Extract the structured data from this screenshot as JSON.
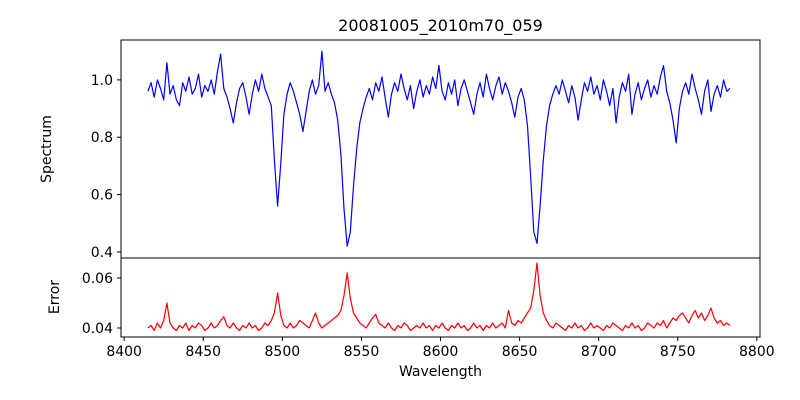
{
  "chart_data": {
    "type": "line",
    "title": "20081005_2010m70_059",
    "xlabel": "Wavelength",
    "grid": false,
    "legend": false,
    "xlim": [
      8398,
      8802
    ],
    "xticks": [
      8400,
      8450,
      8500,
      8550,
      8600,
      8650,
      8700,
      8750,
      8800
    ],
    "xtick_labels": [
      "8400",
      "8450",
      "8500",
      "8550",
      "8600",
      "8650",
      "8700",
      "8750",
      "8800"
    ],
    "absorption_features_x": [
      8498,
      8542,
      8662
    ],
    "panels": [
      {
        "ylabel": "Spectrum",
        "ylim": [
          0.379,
          1.139
        ],
        "yticks": [
          0.4,
          0.6,
          0.8,
          1.0
        ],
        "ytick_labels": [
          "0.4",
          "0.6",
          "0.8",
          "1.0"
        ],
        "series": {
          "name": "spectrum",
          "color": "#0000ff",
          "x_start": 8415,
          "x_step": 2,
          "y": [
            0.96,
            0.99,
            0.94,
            1.0,
            0.97,
            0.93,
            1.06,
            0.95,
            0.98,
            0.93,
            0.91,
            0.99,
            0.96,
            1.01,
            0.95,
            0.97,
            1.02,
            0.94,
            0.98,
            0.96,
            1.0,
            0.95,
            1.03,
            1.09,
            0.97,
            0.94,
            0.9,
            0.85,
            0.92,
            0.97,
            0.99,
            0.94,
            0.88,
            0.95,
            1.0,
            0.96,
            1.02,
            0.97,
            0.94,
            0.91,
            0.72,
            0.56,
            0.71,
            0.88,
            0.95,
            0.99,
            0.96,
            0.92,
            0.88,
            0.82,
            0.89,
            0.96,
            1.0,
            0.95,
            0.98,
            1.1,
            0.96,
            0.99,
            0.95,
            0.92,
            0.86,
            0.74,
            0.55,
            0.42,
            0.47,
            0.63,
            0.76,
            0.85,
            0.9,
            0.94,
            0.97,
            0.93,
            0.99,
            0.96,
            1.01,
            0.94,
            0.87,
            0.95,
            0.99,
            0.96,
            1.02,
            0.97,
            0.93,
            0.98,
            0.9,
            0.96,
            1.0,
            0.94,
            0.98,
            0.95,
            1.01,
            0.97,
            1.05,
            0.96,
            0.93,
            0.99,
            0.95,
            1.0,
            0.91,
            0.97,
            1.0,
            0.96,
            0.92,
            0.88,
            0.95,
            0.99,
            0.94,
            1.02,
            0.97,
            0.93,
            0.98,
            1.01,
            0.95,
            0.99,
            0.96,
            0.92,
            0.87,
            0.94,
            0.97,
            0.93,
            0.84,
            0.66,
            0.47,
            0.43,
            0.56,
            0.72,
            0.84,
            0.91,
            0.95,
            0.98,
            0.95,
            1.0,
            0.96,
            0.92,
            0.98,
            0.94,
            0.86,
            0.93,
            0.99,
            0.96,
            1.01,
            0.95,
            0.98,
            0.93,
            1.0,
            0.96,
            0.91,
            0.97,
            0.85,
            0.94,
            0.99,
            0.96,
            1.02,
            0.88,
            0.95,
            0.99,
            0.93,
            0.97,
            1.0,
            0.94,
            0.98,
            0.95,
            1.01,
            1.05,
            0.96,
            0.92,
            0.86,
            0.78,
            0.9,
            0.96,
            0.99,
            0.95,
            1.02,
            0.97,
            0.93,
            0.88,
            0.96,
            1.0,
            0.89,
            0.95,
            0.98,
            0.94,
            1.0,
            0.96,
            0.97
          ]
        }
      },
      {
        "ylabel": "Error",
        "ylim": [
          0.0364,
          0.068
        ],
        "yticks": [
          0.04,
          0.06
        ],
        "ytick_labels": [
          "0.04",
          "0.06"
        ],
        "series": {
          "name": "error",
          "color": "#ff0000",
          "x_start": 8415,
          "x_step": 2,
          "y": [
            0.04,
            0.041,
            0.039,
            0.042,
            0.04,
            0.043,
            0.05,
            0.042,
            0.04,
            0.039,
            0.041,
            0.04,
            0.042,
            0.039,
            0.041,
            0.04,
            0.042,
            0.041,
            0.039,
            0.04,
            0.042,
            0.04,
            0.041,
            0.043,
            0.0445,
            0.041,
            0.04,
            0.042,
            0.04,
            0.039,
            0.041,
            0.04,
            0.042,
            0.04,
            0.041,
            0.039,
            0.04,
            0.042,
            0.041,
            0.043,
            0.046,
            0.054,
            0.045,
            0.041,
            0.04,
            0.042,
            0.04,
            0.041,
            0.043,
            0.042,
            0.041,
            0.04,
            0.043,
            0.046,
            0.042,
            0.04,
            0.041,
            0.042,
            0.043,
            0.044,
            0.045,
            0.047,
            0.053,
            0.062,
            0.052,
            0.046,
            0.044,
            0.042,
            0.041,
            0.04,
            0.042,
            0.044,
            0.0455,
            0.042,
            0.041,
            0.04,
            0.042,
            0.04,
            0.039,
            0.041,
            0.04,
            0.042,
            0.041,
            0.039,
            0.04,
            0.041,
            0.04,
            0.042,
            0.04,
            0.041,
            0.039,
            0.041,
            0.04,
            0.042,
            0.04,
            0.039,
            0.041,
            0.04,
            0.042,
            0.04,
            0.041,
            0.039,
            0.04,
            0.042,
            0.04,
            0.041,
            0.039,
            0.041,
            0.04,
            0.042,
            0.04,
            0.041,
            0.042,
            0.04,
            0.047,
            0.042,
            0.041,
            0.043,
            0.042,
            0.044,
            0.046,
            0.048,
            0.055,
            0.066,
            0.053,
            0.046,
            0.043,
            0.041,
            0.04,
            0.042,
            0.041,
            0.04,
            0.039,
            0.041,
            0.04,
            0.042,
            0.04,
            0.041,
            0.039,
            0.04,
            0.042,
            0.04,
            0.041,
            0.04,
            0.039,
            0.041,
            0.04,
            0.042,
            0.041,
            0.04,
            0.039,
            0.041,
            0.04,
            0.042,
            0.04,
            0.041,
            0.039,
            0.04,
            0.042,
            0.041,
            0.04,
            0.042,
            0.041,
            0.043,
            0.04,
            0.042,
            0.044,
            0.043,
            0.045,
            0.046,
            0.044,
            0.042,
            0.045,
            0.047,
            0.044,
            0.046,
            0.043,
            0.045,
            0.048,
            0.044,
            0.042,
            0.043,
            0.041,
            0.042,
            0.041
          ]
        }
      }
    ]
  }
}
